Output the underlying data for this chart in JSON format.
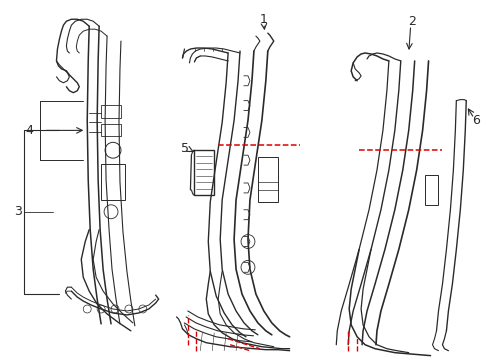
{
  "background_color": "#ffffff",
  "line_color": "#2a2a2a",
  "red_dash_color": "#dd0000",
  "figsize": [
    4.89,
    3.6
  ],
  "dpi": 100
}
